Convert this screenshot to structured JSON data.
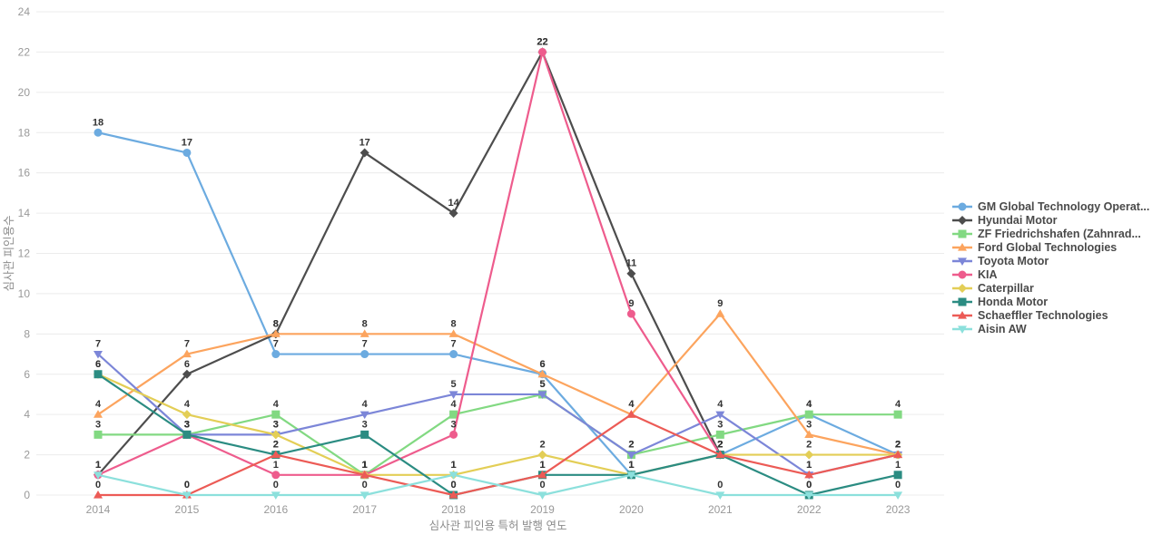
{
  "chart_data": {
    "type": "line",
    "title": "",
    "xlabel": "심사관 피인용 특허 발행 연도",
    "ylabel": "심사관 피인용수",
    "x": [
      2014,
      2015,
      2016,
      2017,
      2018,
      2019,
      2020,
      2021,
      2022,
      2023
    ],
    "ylim": [
      0,
      24
    ],
    "y_ticks": [
      0,
      2,
      4,
      6,
      8,
      10,
      12,
      14,
      16,
      18,
      20,
      22,
      24
    ],
    "grid": true,
    "legend_position": "right",
    "colors": {
      "grid": "#ececec",
      "tick_text": "#999999",
      "axis_title_text": "#8c8c8c",
      "point_label_text": "#333333",
      "legend_text": "#4a4a4a"
    },
    "series": [
      {
        "name": "GM Global Technology Operat...",
        "color": "#6cabe0",
        "marker": "circle",
        "values": [
          18,
          17,
          7,
          7,
          7,
          6,
          1,
          2,
          4,
          2
        ]
      },
      {
        "name": "Hyundai Motor",
        "color": "#4d4d4d",
        "marker": "diamond",
        "values": [
          1,
          6,
          8,
          17,
          14,
          22,
          11,
          2,
          null,
          null
        ]
      },
      {
        "name": "ZF Friedrichshafen (Zahnrad...",
        "color": "#82d982",
        "marker": "square",
        "values": [
          3,
          3,
          4,
          1,
          4,
          5,
          2,
          3,
          4,
          4
        ]
      },
      {
        "name": "Ford Global Technologies",
        "color": "#fca45e",
        "marker": "triangle-up",
        "values": [
          4,
          7,
          8,
          8,
          8,
          6,
          4,
          9,
          3,
          2
        ]
      },
      {
        "name": "Toyota Motor",
        "color": "#7c86d8",
        "marker": "triangle-down",
        "values": [
          7,
          3,
          3,
          4,
          5,
          5,
          2,
          4,
          1,
          2
        ]
      },
      {
        "name": "KIA",
        "color": "#ee5c8d",
        "marker": "circle",
        "values": [
          1,
          3,
          1,
          1,
          3,
          22,
          9,
          2,
          null,
          null
        ]
      },
      {
        "name": "Caterpillar",
        "color": "#e3ce56",
        "marker": "diamond",
        "values": [
          6,
          4,
          3,
          1,
          1,
          2,
          1,
          2,
          2,
          2
        ]
      },
      {
        "name": "Honda Motor",
        "color": "#2b8c82",
        "marker": "square",
        "values": [
          6,
          3,
          2,
          3,
          0,
          1,
          1,
          2,
          0,
          1
        ]
      },
      {
        "name": "Schaeffler Technologies",
        "color": "#ec5b56",
        "marker": "triangle-up",
        "values": [
          0,
          0,
          2,
          1,
          0,
          1,
          4,
          2,
          1,
          2
        ]
      },
      {
        "name": "Aisin AW",
        "color": "#8ce0dc",
        "marker": "triangle-down",
        "values": [
          1,
          0,
          0,
          0,
          1,
          0,
          1,
          0,
          0,
          0
        ]
      }
    ]
  }
}
